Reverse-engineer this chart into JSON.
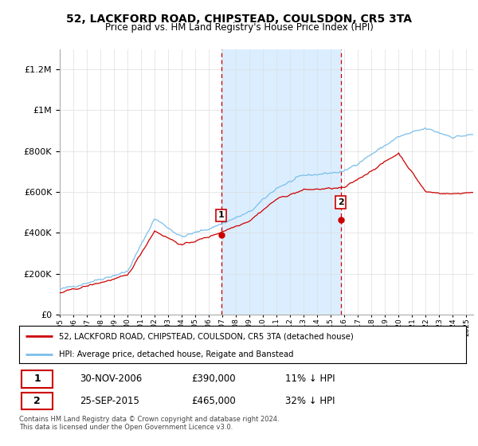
{
  "title": "52, LACKFORD ROAD, CHIPSTEAD, COULSDON, CR5 3TA",
  "subtitle": "Price paid vs. HM Land Registry's House Price Index (HPI)",
  "legend_line1": "52, LACKFORD ROAD, CHIPSTEAD, COULSDON, CR5 3TA (detached house)",
  "legend_line2": "HPI: Average price, detached house, Reigate and Banstead",
  "annotation1_date": "30-NOV-2006",
  "annotation1_price": "£390,000",
  "annotation1_hpi": "11% ↓ HPI",
  "annotation2_date": "25-SEP-2015",
  "annotation2_price": "£465,000",
  "annotation2_hpi": "32% ↓ HPI",
  "footer": "Contains HM Land Registry data © Crown copyright and database right 2024.\nThis data is licensed under the Open Government Licence v3.0.",
  "sale1_year": 2006.917,
  "sale1_value": 390000,
  "sale2_year": 2015.729,
  "sale2_value": 465000,
  "hpi_color": "#7bbfea",
  "price_color": "#cc0000",
  "shade_color": "#dbeeff",
  "dashed_color": "#cc0000",
  "ylim": [
    0,
    1300000
  ],
  "xlim_start": 1995.0,
  "xlim_end": 2025.5
}
